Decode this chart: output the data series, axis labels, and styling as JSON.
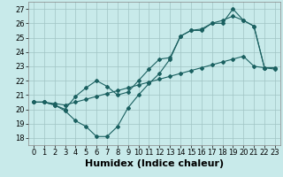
{
  "title": "",
  "xlabel": "Humidex (Indice chaleur)",
  "xlim": [
    -0.5,
    23.5
  ],
  "ylim": [
    17.5,
    27.5
  ],
  "xticks": [
    0,
    1,
    2,
    3,
    4,
    5,
    6,
    7,
    8,
    9,
    10,
    11,
    12,
    13,
    14,
    15,
    16,
    17,
    18,
    19,
    20,
    21,
    22,
    23
  ],
  "yticks": [
    18,
    19,
    20,
    21,
    22,
    23,
    24,
    25,
    26,
    27
  ],
  "bg_color": "#c8eaea",
  "grid_color": "#a0c4c4",
  "line_color": "#1a6060",
  "line1_x": [
    0,
    1,
    2,
    3,
    4,
    5,
    6,
    7,
    8,
    9,
    10,
    11,
    12,
    13,
    14,
    15,
    16,
    17,
    18,
    19,
    20,
    21,
    22,
    23
  ],
  "line1_y": [
    20.5,
    20.5,
    20.3,
    19.9,
    19.2,
    18.8,
    18.1,
    18.1,
    18.8,
    20.1,
    21.0,
    21.8,
    22.5,
    23.5,
    25.1,
    25.5,
    25.5,
    26.0,
    26.0,
    27.0,
    26.2,
    25.8,
    22.9,
    22.9
  ],
  "line2_x": [
    0,
    1,
    2,
    3,
    4,
    5,
    6,
    7,
    8,
    9,
    10,
    11,
    12,
    13,
    14,
    15,
    16,
    17,
    18,
    19,
    20,
    21,
    22,
    23
  ],
  "line2_y": [
    20.5,
    20.5,
    20.4,
    20.3,
    20.5,
    20.7,
    20.9,
    21.1,
    21.3,
    21.5,
    21.7,
    21.9,
    22.1,
    22.3,
    22.5,
    22.7,
    22.9,
    23.1,
    23.3,
    23.5,
    23.7,
    23.0,
    22.9,
    22.8
  ],
  "line3_x": [
    0,
    1,
    2,
    3,
    4,
    5,
    6,
    7,
    8,
    9,
    10,
    11,
    12,
    13,
    14,
    15,
    16,
    17,
    18,
    19,
    20,
    21,
    22,
    23
  ],
  "line3_y": [
    20.5,
    20.5,
    20.3,
    20.0,
    20.9,
    21.5,
    22.0,
    21.6,
    21.0,
    21.2,
    22.0,
    22.8,
    23.5,
    23.6,
    25.1,
    25.5,
    25.6,
    26.0,
    26.2,
    26.5,
    26.2,
    25.8,
    22.9,
    22.9
  ],
  "line1_markers": [
    0,
    1,
    2,
    3,
    4,
    5,
    6,
    7,
    8,
    9,
    14,
    15,
    16,
    17,
    18,
    19,
    20,
    21,
    22,
    23
  ],
  "line2_markers": [
    0,
    1,
    2,
    3,
    9,
    10,
    11,
    14,
    15,
    16,
    17,
    18,
    19,
    20,
    21,
    22,
    23
  ],
  "line3_markers": [
    0,
    1,
    2,
    3,
    4,
    5,
    6,
    7,
    8,
    9,
    10,
    11,
    12,
    13,
    14,
    15,
    16,
    17,
    18,
    19,
    20,
    21,
    22,
    23
  ],
  "font_size": 7,
  "tick_font_size": 6,
  "xlabel_fontsize": 8
}
